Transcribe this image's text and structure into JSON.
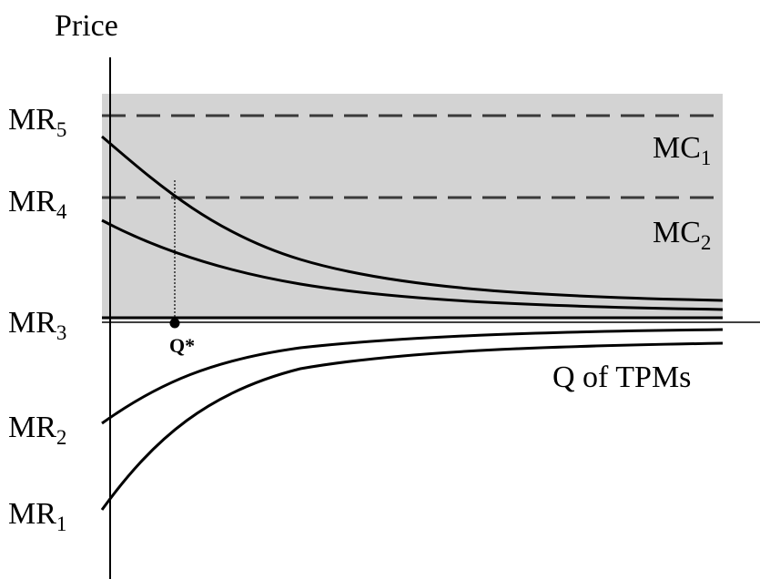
{
  "diagram": {
    "y_axis_label": "Price",
    "x_axis_label": "Q of TPMs",
    "equilibrium_label": "Q*",
    "mr_labels": [
      {
        "base": "MR",
        "sub": "5"
      },
      {
        "base": "MR",
        "sub": "4"
      },
      {
        "base": "MR",
        "sub": "3"
      },
      {
        "base": "MR",
        "sub": "2"
      },
      {
        "base": "MR",
        "sub": "1"
      }
    ],
    "mc_labels": [
      {
        "base": "MC",
        "sub": "1"
      },
      {
        "base": "MC",
        "sub": "2"
      }
    ],
    "colors": {
      "shade": "#d3d3d3",
      "line": "#000000",
      "dashed": "#3a3a3a"
    }
  }
}
